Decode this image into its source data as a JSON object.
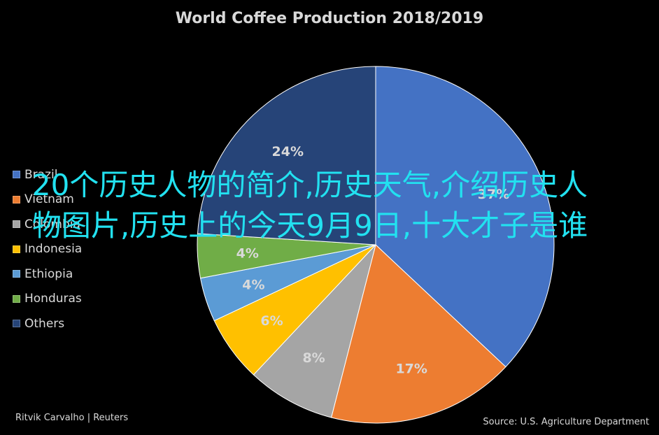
{
  "chart_data": {
    "type": "pie",
    "title": "World Coffee Production 2018/2019",
    "categories": [
      "Brazil",
      "Vietnam",
      "Colombia",
      "Indonesia",
      "Ethiopia",
      "Honduras",
      "Others"
    ],
    "values": [
      37,
      17,
      8,
      6,
      4,
      4,
      24
    ],
    "value_labels": [
      "37%",
      "17%",
      "8%",
      "6%",
      "4%",
      "4%",
      "24%"
    ],
    "colors": [
      "#4472c4",
      "#ed7d31",
      "#a5a5a5",
      "#ffc000",
      "#5b9bd5",
      "#70ad47",
      "#264478"
    ],
    "legend_position": "left"
  },
  "overlay_text": "20个历史人物的简介,历史天气,介绍历史人物图片,历史上的今天9月9日,十大才子是谁",
  "credit": "Ritvik Carvalho | Reuters",
  "source": "Source: U.S. Agriculture Department"
}
